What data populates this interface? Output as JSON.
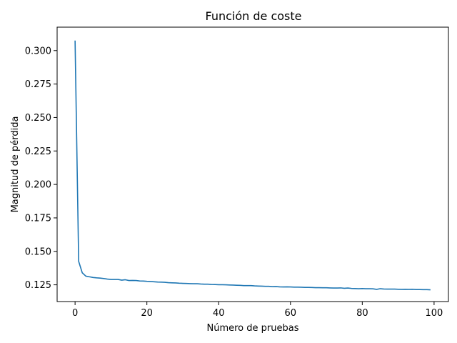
{
  "chart_data": {
    "type": "line",
    "title": "Función de coste",
    "xlabel": "Número de pruebas",
    "ylabel": "Magnitud de pérdida",
    "xlim": [
      -5,
      104
    ],
    "ylim": [
      0.1125,
      0.3175
    ],
    "xticks": [
      0,
      20,
      40,
      60,
      80,
      100
    ],
    "xtick_labels": [
      "0",
      "20",
      "40",
      "60",
      "80",
      "100"
    ],
    "yticks": [
      0.125,
      0.15,
      0.175,
      0.2,
      0.225,
      0.25,
      0.275,
      0.3
    ],
    "ytick_labels": [
      "0.125",
      "0.150",
      "0.175",
      "0.200",
      "0.225",
      "0.250",
      "0.275",
      "0.300"
    ],
    "grid": false,
    "series": [
      {
        "color": "#1f77b4",
        "x": [
          0,
          1,
          2,
          3,
          4,
          5,
          6,
          7,
          8,
          9,
          10,
          11,
          12,
          13,
          14,
          15,
          16,
          17,
          18,
          19,
          20,
          21,
          22,
          23,
          24,
          25,
          26,
          27,
          28,
          29,
          30,
          31,
          32,
          33,
          34,
          35,
          36,
          37,
          38,
          39,
          40,
          41,
          42,
          43,
          44,
          45,
          46,
          47,
          48,
          49,
          50,
          51,
          52,
          53,
          54,
          55,
          56,
          57,
          58,
          59,
          60,
          61,
          62,
          63,
          64,
          65,
          66,
          67,
          68,
          69,
          70,
          71,
          72,
          73,
          74,
          75,
          76,
          77,
          78,
          79,
          80,
          81,
          82,
          83,
          84,
          85,
          86,
          87,
          88,
          89,
          90,
          91,
          92,
          93,
          94,
          95,
          96,
          97,
          98,
          99
        ],
        "values": [
          0.3075,
          0.1425,
          0.134,
          0.1315,
          0.131,
          0.1305,
          0.1302,
          0.13,
          0.1297,
          0.1293,
          0.129,
          0.129,
          0.129,
          0.1285,
          0.1288,
          0.1282,
          0.1283,
          0.1282,
          0.1279,
          0.1278,
          0.1276,
          0.1275,
          0.1273,
          0.1271,
          0.127,
          0.1269,
          0.1266,
          0.1265,
          0.1264,
          0.1262,
          0.1261,
          0.126,
          0.1259,
          0.1258,
          0.1258,
          0.1256,
          0.1255,
          0.1255,
          0.1253,
          0.1252,
          0.1251,
          0.1251,
          0.125,
          0.1249,
          0.1248,
          0.1247,
          0.1246,
          0.1244,
          0.1244,
          0.1244,
          0.1242,
          0.1241,
          0.124,
          0.1239,
          0.1239,
          0.1236,
          0.1237,
          0.1235,
          0.1234,
          0.1235,
          0.1234,
          0.1233,
          0.1233,
          0.1232,
          0.1231,
          0.1231,
          0.123,
          0.1229,
          0.1229,
          0.1228,
          0.1228,
          0.1227,
          0.1226,
          0.1226,
          0.1227,
          0.1224,
          0.1226,
          0.1223,
          0.1222,
          0.1221,
          0.1222,
          0.1221,
          0.1221,
          0.122,
          0.1216,
          0.1221,
          0.1219,
          0.1218,
          0.1218,
          0.1218,
          0.1217,
          0.1216,
          0.1217,
          0.1216,
          0.1217,
          0.1215,
          0.1215,
          0.1214,
          0.1214,
          0.1213
        ]
      }
    ]
  }
}
